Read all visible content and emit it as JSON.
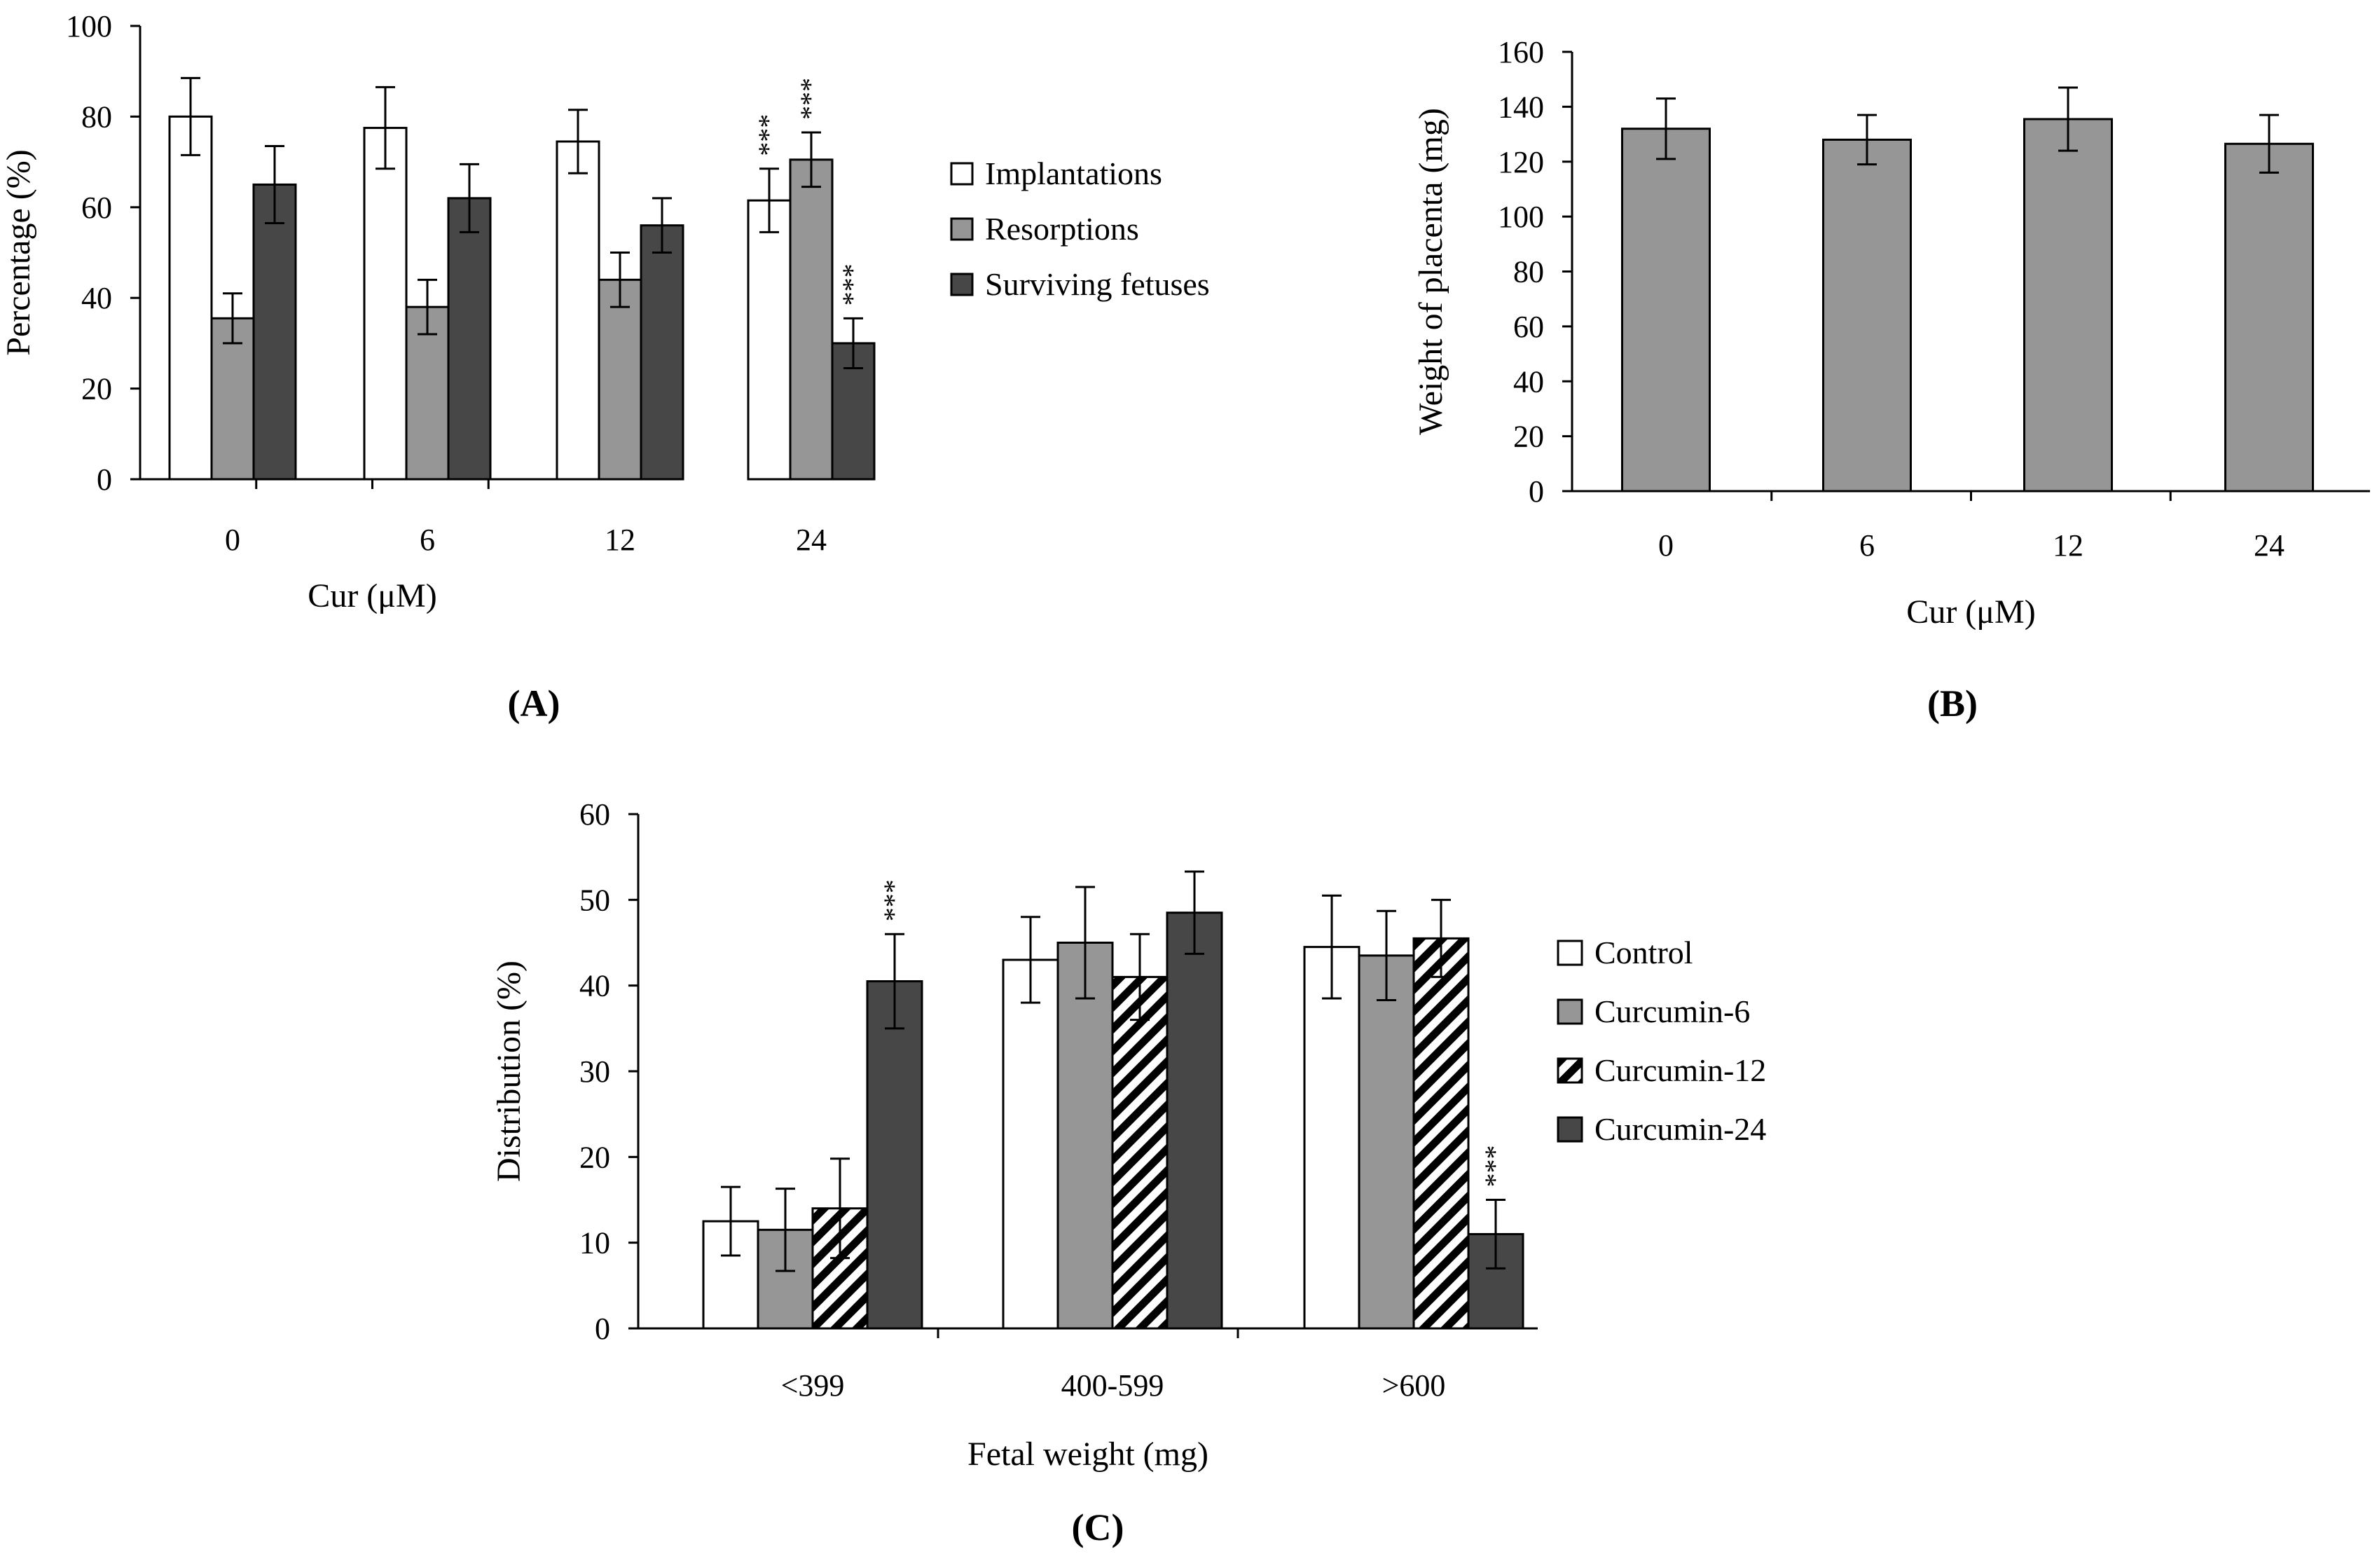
{
  "figure": {
    "panel_labels": [
      "(A)",
      "(B)",
      "(C)"
    ]
  },
  "colors": {
    "implantations": "#ffffff",
    "resorptions": "#969696",
    "surviving": "#474747",
    "control": "#ffffff",
    "curcumin6": "#969696",
    "curcumin24": "#474747",
    "axis": "#000000"
  },
  "chart_data": [
    {
      "id": "A",
      "type": "bar",
      "title": "",
      "xlabel": "Cur (μM)",
      "ylabel": "Percentage (%)",
      "ylim": [
        0,
        100
      ],
      "yticks": [
        0,
        20,
        40,
        60,
        80,
        100
      ],
      "categories": [
        "0",
        "6",
        "12",
        "24"
      ],
      "legend_position": "right",
      "series": [
        {
          "name": "Implantations",
          "color_key": "implantations",
          "pattern": "solid",
          "values": [
            80,
            77.5,
            74.5,
            61.5
          ],
          "errors": [
            8.5,
            9,
            7,
            7
          ],
          "annotations": [
            "",
            "",
            "",
            "***"
          ]
        },
        {
          "name": "Resorptions",
          "color_key": "resorptions",
          "pattern": "solid",
          "values": [
            35.5,
            38,
            44,
            70.5
          ],
          "errors": [
            5.5,
            6,
            6,
            6
          ],
          "annotations": [
            "",
            "",
            "",
            "***"
          ]
        },
        {
          "name": "Surviving fetuses",
          "color_key": "surviving",
          "pattern": "solid",
          "values": [
            65,
            62,
            56,
            30
          ],
          "errors": [
            8.5,
            7.5,
            6,
            5.5
          ],
          "annotations": [
            "",
            "",
            "",
            "***"
          ]
        }
      ]
    },
    {
      "id": "B",
      "type": "bar",
      "title": "",
      "xlabel": "Cur (μM)",
      "ylabel": "Weight of placenta (mg)",
      "ylim": [
        0,
        160
      ],
      "yticks": [
        0,
        20,
        40,
        60,
        80,
        100,
        120,
        140,
        160
      ],
      "categories": [
        "0",
        "6",
        "12",
        "24"
      ],
      "series": [
        {
          "name": "Weight of placenta",
          "color_key": "resorptions",
          "pattern": "solid",
          "values": [
            132,
            128,
            135.5,
            126.5
          ],
          "errors": [
            11,
            9,
            11.5,
            10.5
          ],
          "annotations": [
            "",
            "",
            "",
            ""
          ]
        }
      ]
    },
    {
      "id": "C",
      "type": "bar",
      "title": "",
      "xlabel": "Fetal weight (mg)",
      "ylabel": "Distribution (%)",
      "ylim": [
        0,
        60
      ],
      "yticks": [
        0,
        10,
        20,
        30,
        40,
        50,
        60
      ],
      "categories": [
        "<399",
        "400-599",
        ">600"
      ],
      "legend_position": "right",
      "series": [
        {
          "name": "Control",
          "color_key": "control",
          "pattern": "solid",
          "values": [
            12.5,
            43,
            44.5
          ],
          "errors": [
            4,
            5,
            6
          ],
          "annotations": [
            "",
            "",
            ""
          ]
        },
        {
          "name": "Curcumin-6",
          "color_key": "curcumin6",
          "pattern": "solid",
          "values": [
            11.5,
            45,
            43.5
          ],
          "errors": [
            4.8,
            6.5,
            5.2
          ],
          "annotations": [
            "",
            "",
            ""
          ]
        },
        {
          "name": "Curcumin-12",
          "color_key": "control",
          "pattern": "hatch",
          "values": [
            14,
            41,
            45.5
          ],
          "errors": [
            5.8,
            5,
            4.5
          ],
          "annotations": [
            "",
            "",
            ""
          ]
        },
        {
          "name": "Curcumin-24",
          "color_key": "curcumin24",
          "pattern": "solid",
          "values": [
            40.5,
            48.5,
            11
          ],
          "errors": [
            5.5,
            4.8,
            4
          ],
          "annotations": [
            "***",
            "",
            "***"
          ]
        }
      ]
    }
  ]
}
